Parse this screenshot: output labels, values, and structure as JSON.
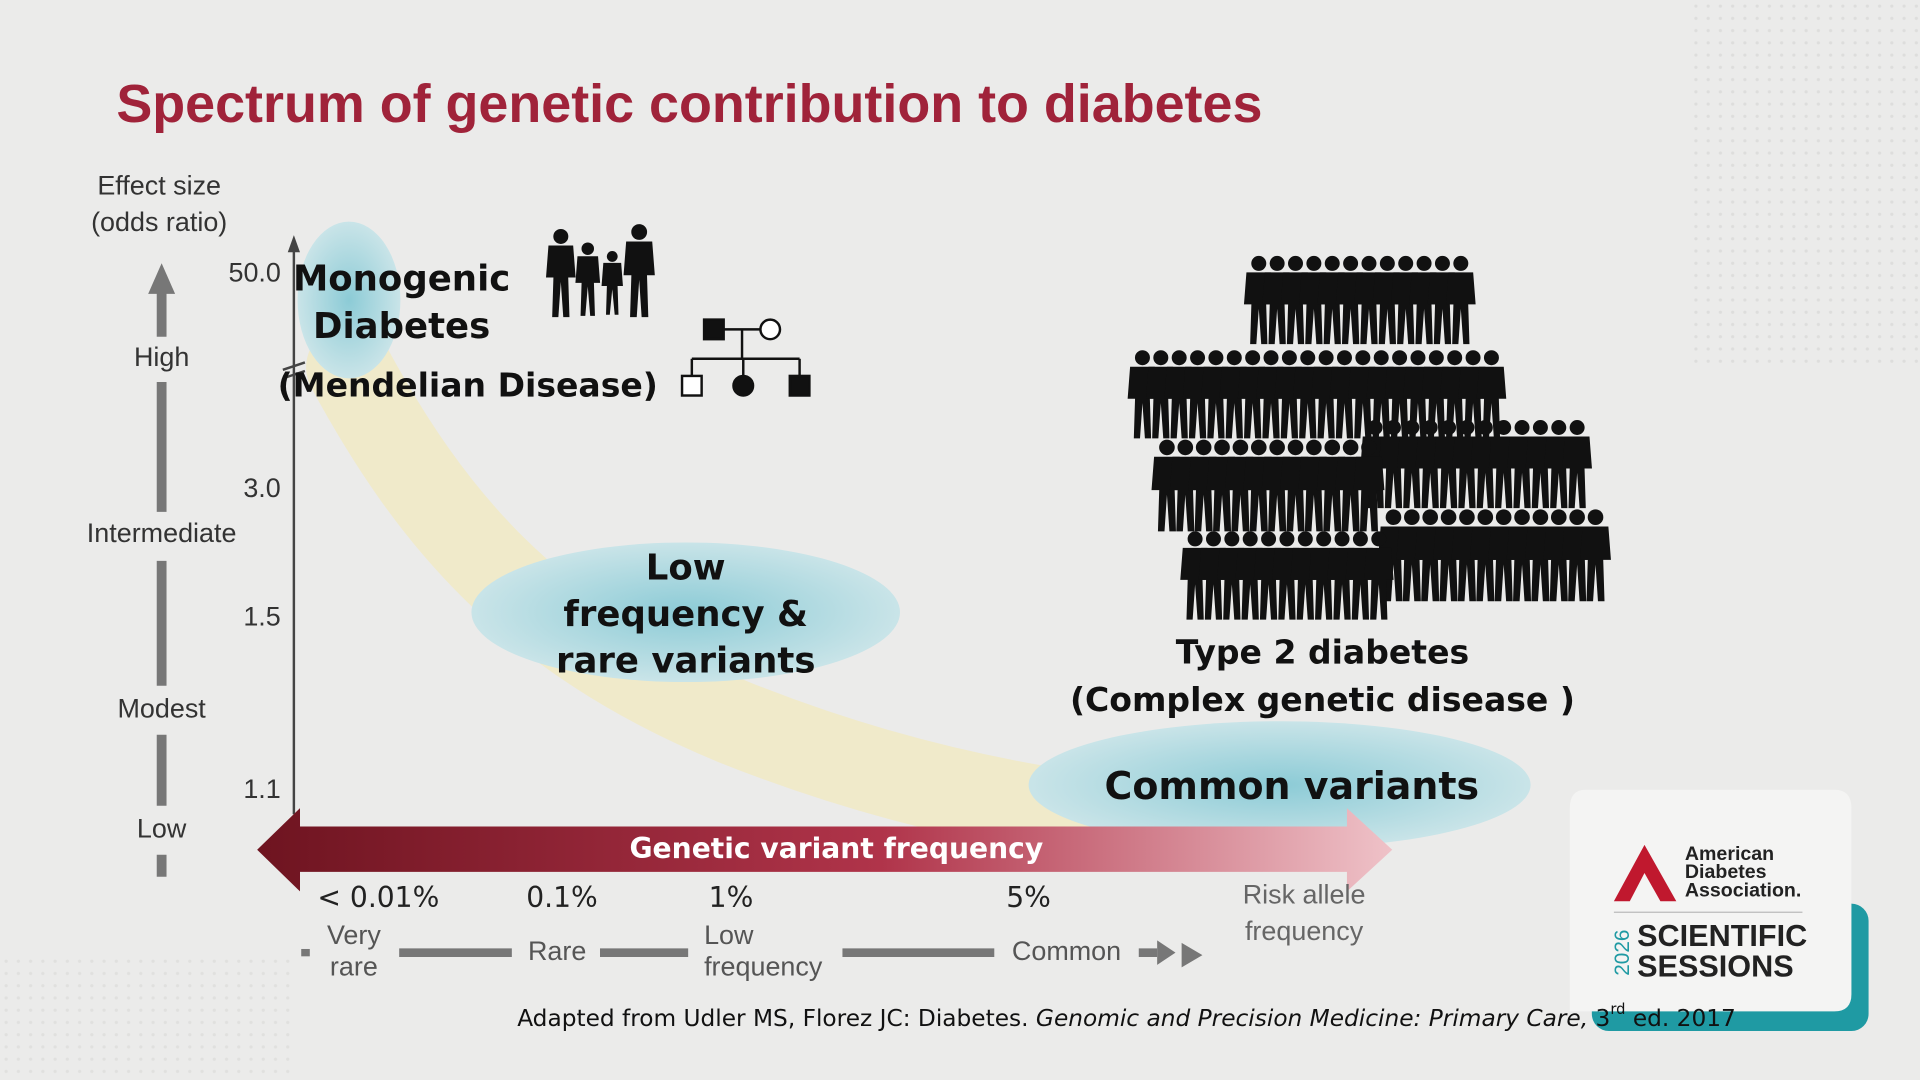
{
  "title": "Spectrum of genetic contribution to diabetes",
  "y_axis": {
    "title_lines": [
      "Effect size",
      "(odds ratio)"
    ],
    "ticks": [
      "50.0",
      "3.0",
      "1.5",
      "1.1"
    ],
    "levels": [
      "High",
      "Intermediate",
      "Modest",
      "Low"
    ]
  },
  "regions": [
    {
      "label_lines": [
        "Monogenic",
        "Diabetes"
      ],
      "note": "(Mendelian Disease)"
    },
    {
      "label_lines": [
        "Low",
        "frequency &",
        "rare variants"
      ]
    },
    {
      "label_lines": [
        "Common variants"
      ]
    }
  ],
  "type2_lines": [
    "Type 2 diabetes",
    "(Complex genetic disease )"
  ],
  "x_axis": {
    "title": "Genetic variant frequency",
    "ticks": [
      "< 0.01%",
      "0.1%",
      "1%",
      "5%"
    ],
    "end_label_lines": [
      "Risk allele",
      "frequency"
    ],
    "categories": [
      [
        "Very",
        "rare"
      ],
      [
        "Rare"
      ],
      [
        "Low",
        "frequency"
      ],
      [
        "Common"
      ]
    ]
  },
  "citation": {
    "plain": "Adapted from Udler MS, Florez JC: Diabetes. ",
    "italic": "Genomic and Precision Medicine: Primary Care,",
    "edition": " 3",
    "superscript": "rd",
    "rest": " ed. 2017"
  },
  "logo": {
    "org_lines": [
      "American",
      "Diabetes",
      "Association."
    ],
    "year": "2026",
    "event_lines": [
      "SCIENTIFIC",
      "SESSIONS"
    ]
  }
}
